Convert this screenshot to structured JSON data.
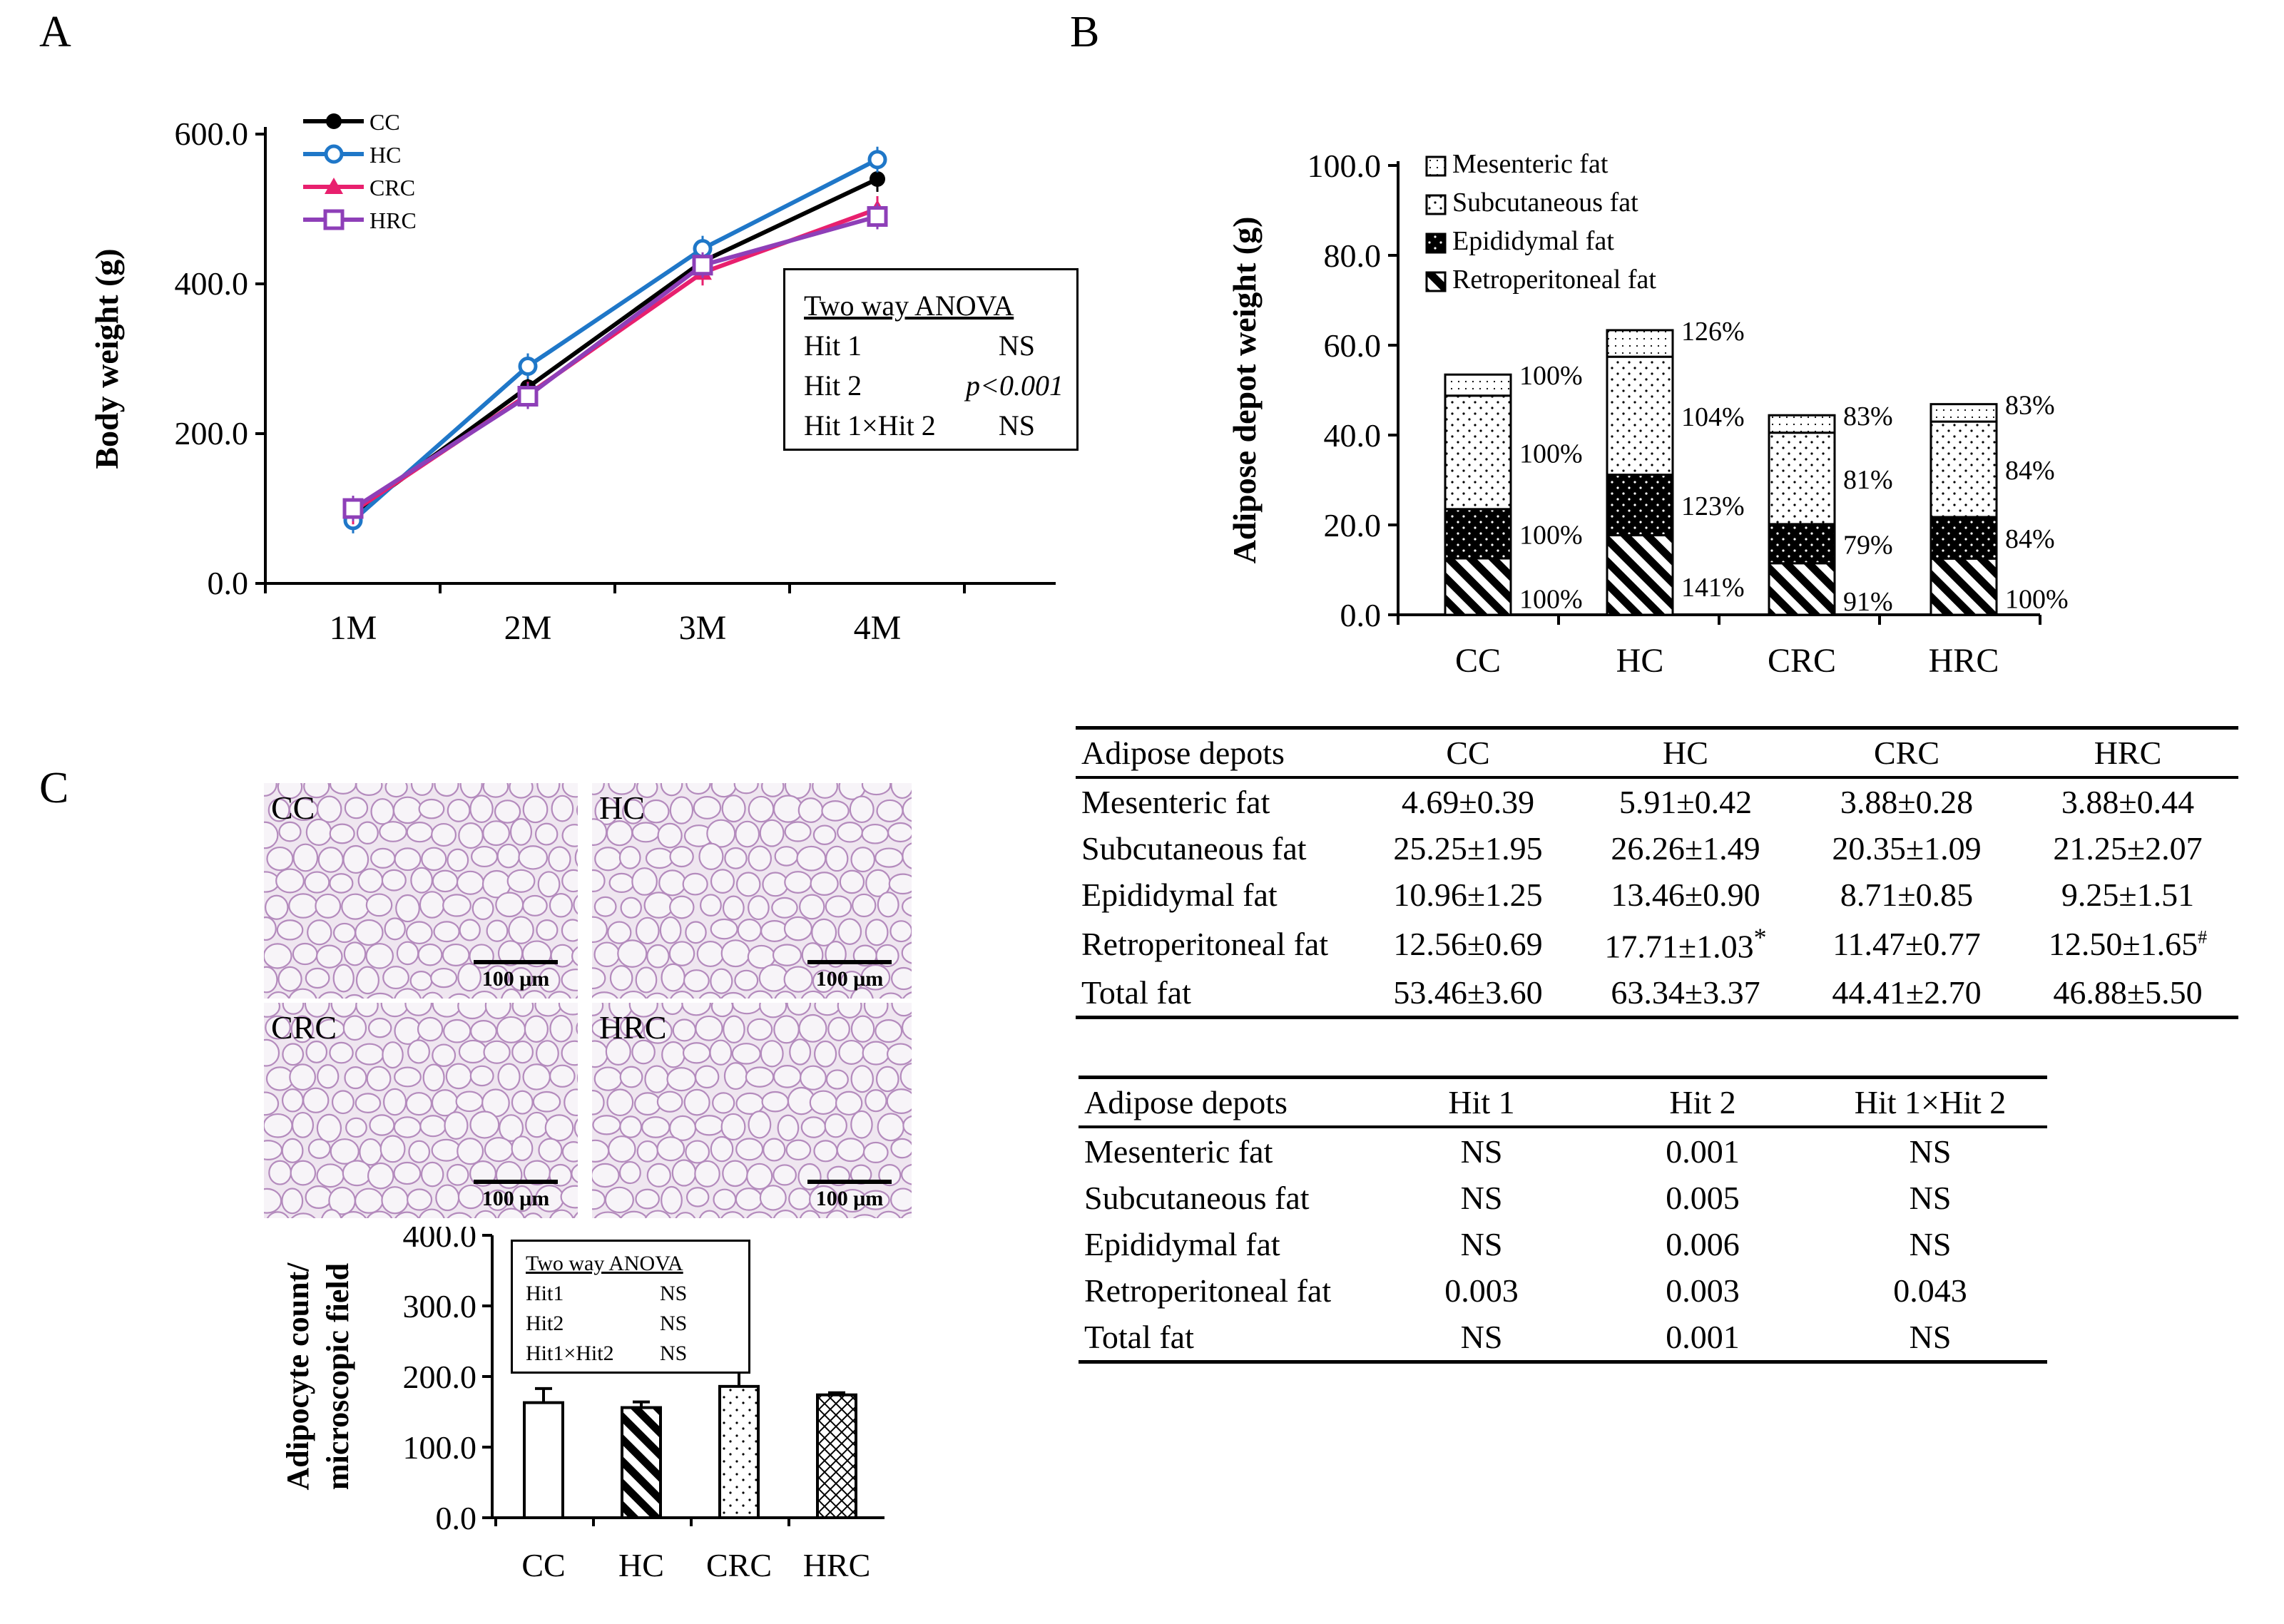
{
  "panels": {
    "a": "A",
    "b": "B",
    "c": "C"
  },
  "chart_data": [
    {
      "type": "line",
      "panel": "A",
      "ylabel": "Body weight (g)",
      "xlabel": "",
      "categories": [
        "1M",
        "2M",
        "3M",
        "4M"
      ],
      "ylim": [
        0,
        600
      ],
      "yticks": [
        "0.0",
        "200.0",
        "400.0",
        "600.0"
      ],
      "series": [
        {
          "name": "CC",
          "values": [
            92,
            262,
            430,
            540
          ],
          "color": "#000000"
        },
        {
          "name": "HC",
          "values": [
            84,
            290,
            447,
            566
          ],
          "color": "#1f77c8"
        },
        {
          "name": "CRC",
          "values": [
            96,
            252,
            415,
            500
          ],
          "color": "#e8206e"
        },
        {
          "name": "HRC",
          "values": [
            100,
            250,
            425,
            490
          ],
          "color": "#8e3fb8"
        }
      ],
      "anova": {
        "title": "Two way ANOVA",
        "rows": [
          {
            "term": "Hit 1",
            "value": "NS"
          },
          {
            "term": "Hit 2",
            "value": "p<0.001"
          },
          {
            "term": "Hit 1×Hit 2",
            "value": "NS"
          }
        ]
      }
    },
    {
      "type": "bar",
      "stacked": true,
      "panel": "B",
      "ylabel": "Adipose depot weight (g)",
      "categories": [
        "CC",
        "HC",
        "CRC",
        "HRC"
      ],
      "ylim": [
        0,
        100
      ],
      "yticks": [
        "0.0",
        "20.0",
        "40.0",
        "60.0",
        "80.0",
        "100.0"
      ],
      "series": [
        {
          "name": "Retroperitoneal fat",
          "values": [
            12.56,
            17.71,
            11.47,
            12.5
          ],
          "percent_labels": [
            "100%",
            "141%",
            "91%",
            "100%"
          ]
        },
        {
          "name": "Epididymal fat",
          "values": [
            10.96,
            13.46,
            8.71,
            9.25
          ],
          "percent_labels": [
            "100%",
            "123%",
            "79%",
            "84%"
          ]
        },
        {
          "name": "Subcutaneous fat",
          "values": [
            25.25,
            26.26,
            20.35,
            21.25
          ],
          "percent_labels": [
            "100%",
            "104%",
            "81%",
            "84%"
          ]
        },
        {
          "name": "Mesenteric fat",
          "values": [
            4.69,
            5.91,
            3.88,
            3.88
          ],
          "percent_labels": [
            "100%",
            "126%",
            "83%",
            "83%"
          ]
        }
      ],
      "legend_order": [
        "Mesenteric fat",
        "Subcutaneous fat",
        "Epididymal fat",
        "Retroperitoneal fat"
      ]
    },
    {
      "type": "bar",
      "panel": "C",
      "ylabel_lines": [
        "Adipocyte count/",
        "microscopic field"
      ],
      "categories": [
        "CC",
        "HC",
        "CRC",
        "HRC"
      ],
      "values": [
        163,
        156,
        186,
        174
      ],
      "errors": [
        20,
        8,
        20,
        3
      ],
      "ylim": [
        0,
        400
      ],
      "yticks": [
        "0.0",
        "100.0",
        "200.0",
        "300.0",
        "400.0"
      ],
      "anova": {
        "title": "Two way ANOVA",
        "rows": [
          {
            "term": "Hit1",
            "value": "NS"
          },
          {
            "term": "Hit2",
            "value": "NS"
          },
          {
            "term": "Hit1×Hit2",
            "value": "NS"
          }
        ]
      }
    },
    {
      "type": "table",
      "panel": "B",
      "name": "depot-weights",
      "header": [
        "Adipose depots",
        "CC",
        "HC",
        "CRC",
        "HRC"
      ],
      "rows": [
        [
          "Mesenteric fat",
          "4.69±0.39",
          "5.91±0.42",
          "3.88±0.28",
          "3.88±0.44"
        ],
        [
          "Subcutaneous fat",
          "25.25±1.95",
          "26.26±1.49",
          "20.35±1.09",
          "21.25±2.07"
        ],
        [
          "Epididymal fat",
          "10.96±1.25",
          "13.46±0.90",
          "8.71±0.85",
          "9.25±1.51"
        ],
        [
          "Retroperitoneal fat",
          "12.56±0.69",
          "17.71±1.03",
          "11.47±0.77",
          "12.50±1.65"
        ],
        [
          "Total fat",
          "53.46±3.60",
          "63.34±3.37",
          "44.41±2.70",
          "46.88±5.50"
        ]
      ],
      "marks": {
        "hc_retro": "*",
        "hrc_retro": "#"
      }
    },
    {
      "type": "table",
      "panel": "B",
      "name": "depot-anova",
      "header": [
        "Adipose depots",
        "Hit 1",
        "Hit 2",
        "Hit 1×Hit 2"
      ],
      "rows": [
        [
          "Mesenteric fat",
          "NS",
          "0.001",
          "NS"
        ],
        [
          "Subcutaneous fat",
          "NS",
          "0.005",
          "NS"
        ],
        [
          "Epididymal fat",
          "NS",
          "0.006",
          "NS"
        ],
        [
          "Retroperitoneal fat",
          "0.003",
          "0.003",
          "0.043"
        ],
        [
          "Total fat",
          "NS",
          "0.001",
          "NS"
        ]
      ]
    }
  ],
  "micrographs": {
    "labels": [
      "CC",
      "HC",
      "CRC",
      "HRC"
    ],
    "scale_label": "100 μm"
  }
}
